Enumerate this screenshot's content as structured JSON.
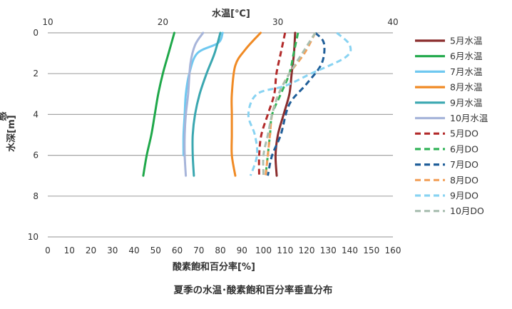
{
  "chart_data": {
    "type": "line",
    "title": "夏季の水温･酸素飽和百分率垂直分布",
    "x_top_label": "水温[℃]",
    "x_bottom_label": "酸素飽和百分率[%]",
    "y_label": "水深[m]",
    "y_label_fragment": "感",
    "x_top_range": [
      10,
      40
    ],
    "x_top_ticks": [
      "10",
      "20",
      "30",
      "40"
    ],
    "x_bottom_range": [
      0,
      160
    ],
    "x_bottom_ticks": [
      "0",
      "10",
      "20",
      "30",
      "40",
      "50",
      "60",
      "70",
      "80",
      "90",
      "100",
      "110",
      "120",
      "130",
      "140",
      "150",
      "160"
    ],
    "y_range": [
      0,
      10
    ],
    "y_ticks": [
      "0",
      "2",
      "4",
      "6",
      "8",
      "10"
    ],
    "grid": "horizontal",
    "legend_position": "right",
    "series": [
      {
        "name": "5月水温",
        "axis": "temperature",
        "style": "solid",
        "color": "#8b2d2d",
        "points": [
          [
            31.5,
            0
          ],
          [
            31.4,
            1
          ],
          [
            31.2,
            2
          ],
          [
            31.0,
            3
          ],
          [
            30.5,
            4
          ],
          [
            30.0,
            5
          ],
          [
            29.8,
            6
          ],
          [
            29.9,
            7
          ]
        ]
      },
      {
        "name": "6月水温",
        "axis": "temperature",
        "style": "solid",
        "color": "#1fa84a",
        "points": [
          [
            21.0,
            0
          ],
          [
            20.5,
            1
          ],
          [
            20.0,
            2
          ],
          [
            19.6,
            3
          ],
          [
            19.3,
            4
          ],
          [
            19.0,
            5
          ],
          [
            18.6,
            6
          ],
          [
            18.3,
            7
          ]
        ]
      },
      {
        "name": "7月水温",
        "axis": "temperature",
        "style": "solid",
        "color": "#6fc8f0",
        "points": [
          [
            25.2,
            0
          ],
          [
            24.8,
            0.5
          ],
          [
            23.0,
            1
          ],
          [
            22.3,
            2
          ],
          [
            22.0,
            3
          ],
          [
            21.9,
            4
          ],
          [
            21.8,
            5
          ],
          [
            21.8,
            6
          ]
        ]
      },
      {
        "name": "8月水温",
        "axis": "temperature",
        "style": "solid",
        "color": "#f08a24",
        "points": [
          [
            28.5,
            0
          ],
          [
            27.2,
            0.8
          ],
          [
            26.3,
            1.6
          ],
          [
            26.0,
            3
          ],
          [
            26.0,
            4
          ],
          [
            26.0,
            5
          ],
          [
            26.0,
            6
          ],
          [
            26.3,
            7
          ]
        ]
      },
      {
        "name": "9月水温",
        "axis": "temperature",
        "style": "solid",
        "color": "#3aa7b0",
        "points": [
          [
            25.0,
            0
          ],
          [
            24.5,
            1
          ],
          [
            23.8,
            2
          ],
          [
            23.2,
            3
          ],
          [
            22.8,
            4
          ],
          [
            22.6,
            5
          ],
          [
            22.6,
            6
          ],
          [
            22.7,
            7
          ]
        ]
      },
      {
        "name": "10月水温",
        "axis": "temperature",
        "style": "solid",
        "color": "#a7b5da",
        "points": [
          [
            23.5,
            0
          ],
          [
            22.8,
            0.6
          ],
          [
            22.4,
            1.5
          ],
          [
            22.2,
            3
          ],
          [
            22.0,
            4
          ],
          [
            21.9,
            5
          ],
          [
            21.9,
            6
          ],
          [
            22.0,
            7
          ]
        ]
      },
      {
        "name": "5月DO",
        "axis": "do",
        "style": "dashed",
        "color": "#b22a2a",
        "points": [
          [
            110,
            0
          ],
          [
            108,
            1
          ],
          [
            106,
            2
          ],
          [
            105,
            3
          ],
          [
            102,
            4
          ],
          [
            99,
            5
          ],
          [
            98,
            6
          ],
          [
            98,
            7
          ]
        ]
      },
      {
        "name": "6月DO",
        "axis": "do",
        "style": "dashed",
        "color": "#33b45a",
        "points": [
          [
            116,
            0
          ],
          [
            114,
            1
          ],
          [
            112,
            2
          ],
          [
            108,
            3
          ],
          [
            104,
            4
          ],
          [
            103,
            5
          ],
          [
            102,
            6
          ],
          [
            101,
            7
          ]
        ]
      },
      {
        "name": "7月DO",
        "axis": "do",
        "style": "dashed",
        "color": "#1f5e99",
        "points": [
          [
            124,
            0
          ],
          [
            128,
            0.5
          ],
          [
            127,
            1.5
          ],
          [
            120,
            2.5
          ],
          [
            112,
            3.5
          ],
          [
            108,
            5
          ],
          [
            104,
            6
          ],
          [
            102,
            7
          ]
        ]
      },
      {
        "name": "8月DO",
        "axis": "do",
        "style": "dashed",
        "color": "#f2a05a",
        "points": [
          [
            124,
            0
          ],
          [
            119,
            1
          ],
          [
            112,
            2
          ],
          [
            107,
            3
          ],
          [
            104,
            4
          ],
          [
            103,
            5
          ],
          [
            102,
            6
          ],
          [
            101,
            7
          ]
        ]
      },
      {
        "name": "9月DO",
        "axis": "do",
        "style": "dashed",
        "color": "#88d3f2",
        "points": [
          [
            134,
            0
          ],
          [
            140,
            0.6
          ],
          [
            138,
            1.2
          ],
          [
            122,
            2
          ],
          [
            110,
            2.6
          ],
          [
            97,
            3
          ],
          [
            93,
            4
          ],
          [
            96,
            5
          ],
          [
            97,
            6
          ],
          [
            94,
            7
          ]
        ]
      },
      {
        "name": "10月DO",
        "axis": "do",
        "style": "dashed",
        "color": "#a9bfb1",
        "points": [
          [
            124,
            0
          ],
          [
            118,
            1
          ],
          [
            112,
            2
          ],
          [
            107,
            3
          ],
          [
            104,
            4
          ],
          [
            102,
            5
          ],
          [
            100,
            6
          ],
          [
            100,
            7
          ]
        ]
      }
    ]
  }
}
